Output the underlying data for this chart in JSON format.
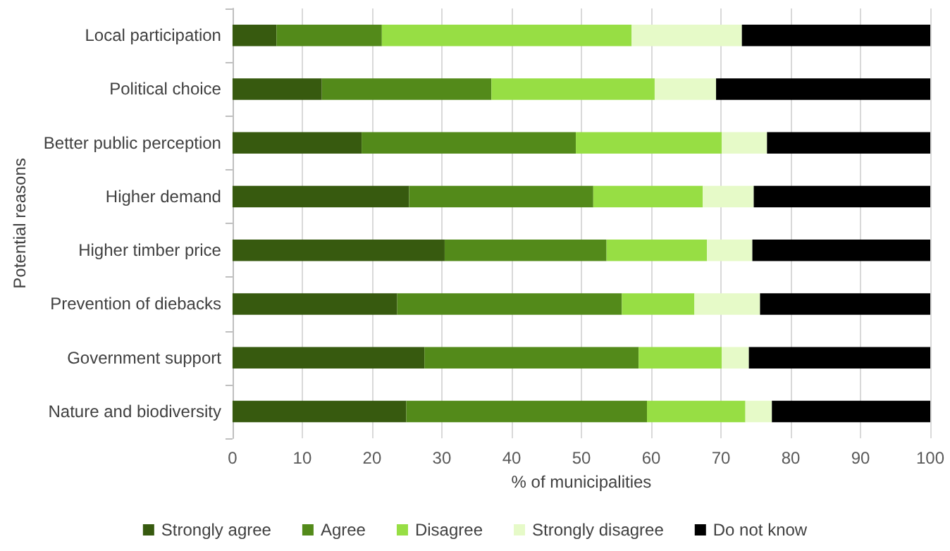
{
  "chart_data": {
    "type": "bar",
    "orientation": "horizontal",
    "stacked": true,
    "ylabel": "Potential reasons",
    "xlabel": "% of municipalities",
    "categories": [
      "Local participation",
      "Political choice",
      "Better public perception",
      "Higher demand",
      "Higher timber price",
      "Prevention of diebacks",
      "Government support",
      "Nature and biodiversity"
    ],
    "series": [
      {
        "name": "Strongly agree",
        "color": "#375a0f",
        "values": [
          6.3,
          12.8,
          18.5,
          25.3,
          30.4,
          23.6,
          27.5,
          24.9
        ]
      },
      {
        "name": "Agree",
        "color": "#538a1a",
        "values": [
          15.1,
          24.3,
          30.7,
          26.4,
          23.2,
          32.2,
          30.7,
          34.5
        ]
      },
      {
        "name": "Disagree",
        "color": "#97de44",
        "values": [
          35.8,
          23.4,
          20.9,
          15.7,
          14.4,
          10.4,
          11.9,
          14.1
        ]
      },
      {
        "name": "Strongly disagree",
        "color": "#e6fac8",
        "values": [
          15.8,
          8.8,
          6.5,
          7.3,
          6.5,
          9.4,
          3.9,
          3.8
        ]
      },
      {
        "name": "Do not know",
        "color": "#000000",
        "values": [
          27.0,
          30.7,
          23.4,
          25.3,
          25.5,
          24.4,
          26.0,
          22.7
        ]
      }
    ],
    "xlim": [
      0,
      100
    ],
    "xticks": [
      0,
      10,
      20,
      30,
      40,
      50,
      60,
      70,
      80,
      90,
      100
    ],
    "grid": "x",
    "legend": "bottom"
  }
}
